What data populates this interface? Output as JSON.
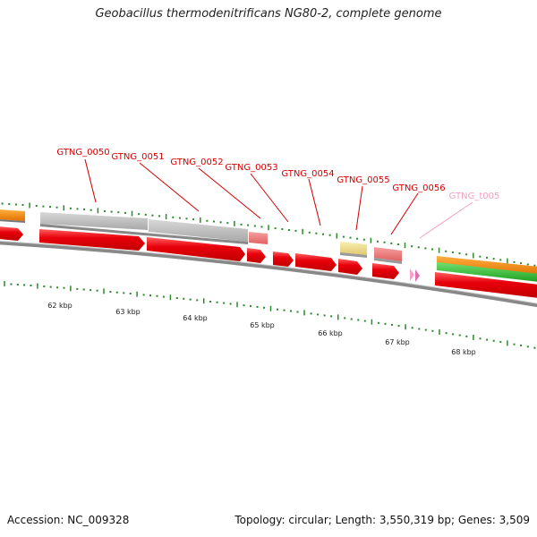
{
  "title": "Geobacillus thermodenitrificans NG80-2, complete genome",
  "footer": {
    "accession": "Accession: NC_009328",
    "summary": "Topology: circular; Length: 3,550,319 bp; Genes: 3,509"
  },
  "colors": {
    "cds": "#e8000b",
    "gray_feature": "#bdbdbd",
    "pink_feature": "#f08080",
    "yellow_feature": "#f0e08c",
    "orange_feature": "#ff8c00",
    "green_feature": "#33cc33",
    "trna": "#f4a0d0",
    "ticks": "#2a8a2a",
    "backbone": "#888888"
  },
  "gene_labels": [
    {
      "id": "GTNG_0050",
      "type": "cds"
    },
    {
      "id": "GTNG_0051",
      "type": "cds"
    },
    {
      "id": "GTNG_0052",
      "type": "cds"
    },
    {
      "id": "GTNG_0053",
      "type": "cds"
    },
    {
      "id": "GTNG_0054",
      "type": "cds"
    },
    {
      "id": "GTNG_0055",
      "type": "cds"
    },
    {
      "id": "GTNG_0056",
      "type": "cds"
    },
    {
      "id": "GTNG_t005",
      "type": "trna"
    }
  ],
  "kbp_labels": [
    "62 kbp",
    "63 kbp",
    "64 kbp",
    "65 kbp",
    "66 kbp",
    "67 kbp",
    "68 kbp"
  ]
}
